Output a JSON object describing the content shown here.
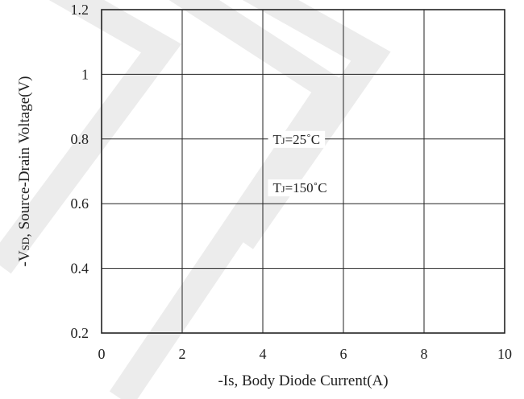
{
  "chart_data": {
    "type": "line",
    "title": "",
    "xlabel": "-Is, Body Diode Current(A)",
    "ylabel_main": "-V",
    "ylabel_sub": "SD",
    "ylabel_rest": ", Source-Drain Voltage(V)",
    "xlim": [
      0,
      10
    ],
    "ylim": [
      0.2,
      1.2
    ],
    "x_ticks": [
      "0",
      "2",
      "4",
      "6",
      "8",
      "10"
    ],
    "y_ticks": [
      "0.2",
      "0.4",
      "0.6",
      "0.8",
      "1",
      "1.2"
    ],
    "grid": true,
    "series": [
      {
        "label_main": "T",
        "label_sub": "J",
        "label_rest": "=25˚C",
        "label_at": {
          "x": 4.25,
          "y": 0.8
        },
        "points": []
      },
      {
        "label_main": "T",
        "label_sub": "J",
        "label_rest": "=150˚C",
        "label_at": {
          "x": 4.25,
          "y": 0.65
        },
        "points": []
      }
    ]
  },
  "colors": {
    "axis": "#222222",
    "grid": "#222222",
    "watermark": "#ececec"
  }
}
